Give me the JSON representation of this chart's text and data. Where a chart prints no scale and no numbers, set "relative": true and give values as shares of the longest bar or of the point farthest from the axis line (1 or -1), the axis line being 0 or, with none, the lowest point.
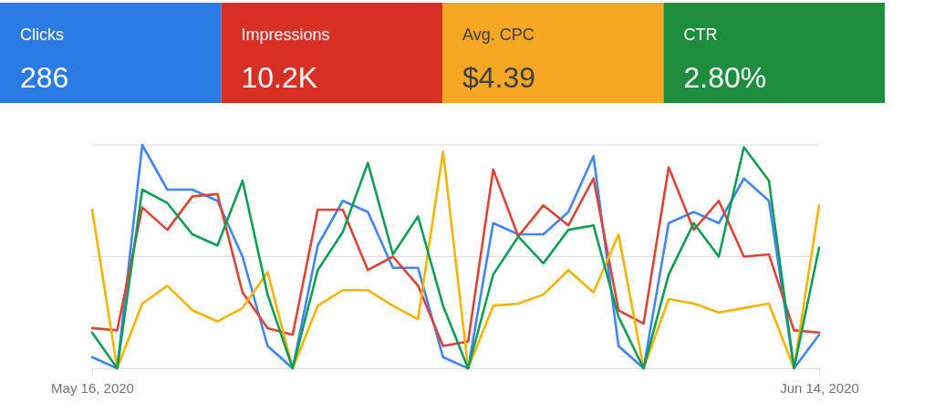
{
  "chart_data": [
    {
      "type": "other",
      "categories": [
        "Clicks",
        "Impressions",
        "Avg. CPC",
        "CTR"
      ],
      "annotations": [
        "286",
        "10.2K",
        "$4.39",
        "2.80%"
      ],
      "colors": [
        "#2a7be4",
        "#d93025",
        "#f5a623",
        "#1e8e3e"
      ]
    },
    {
      "type": "line",
      "relative": true,
      "x": [
        "2020-05-16",
        "2020-05-17",
        "2020-05-18",
        "2020-05-19",
        "2020-05-20",
        "2020-05-21",
        "2020-05-22",
        "2020-05-23",
        "2020-05-24",
        "2020-05-25",
        "2020-05-26",
        "2020-05-27",
        "2020-05-28",
        "2020-05-29",
        "2020-05-30",
        "2020-05-31",
        "2020-06-01",
        "2020-06-02",
        "2020-06-03",
        "2020-06-04",
        "2020-06-05",
        "2020-06-06",
        "2020-06-07",
        "2020-06-08",
        "2020-06-09",
        "2020-06-10",
        "2020-06-11",
        "2020-06-12",
        "2020-06-13",
        "2020-06-14"
      ],
      "xlim": [
        "2020-05-16",
        "2020-06-14"
      ],
      "xticks": [
        {
          "value": "2020-05-16",
          "label": "May 16, 2020"
        },
        {
          "value": "2020-06-14",
          "label": "Jun 14, 2020"
        }
      ],
      "series": [
        {
          "color": "#4285f4",
          "values": [
            0.05,
            0,
            1,
            0.8,
            0.8,
            0.75,
            0.5,
            0.1,
            0,
            0.55,
            0.75,
            0.7,
            0.45,
            0.45,
            0.05,
            0,
            0.65,
            0.6,
            0.6,
            0.7,
            0.95,
            0.1,
            0,
            0.65,
            0.7,
            0.65,
            0.85,
            0.75,
            0,
            0.15
          ]
        },
        {
          "color": "#db4437",
          "values": [
            0.18,
            0.17,
            0.72,
            0.62,
            0.77,
            0.78,
            0.34,
            0.18,
            0.15,
            0.71,
            0.71,
            0.44,
            0.5,
            0.37,
            0.1,
            0.12,
            0.89,
            0.59,
            0.73,
            0.64,
            0.85,
            0.26,
            0.2,
            0.9,
            0.62,
            0.75,
            0.5,
            0.51,
            0.17,
            0.16
          ]
        },
        {
          "color": "#f4b400",
          "values": [
            0.71,
            0,
            0.29,
            0.37,
            0.26,
            0.21,
            0.27,
            0.43,
            0,
            0.28,
            0.35,
            0.35,
            0.28,
            0.22,
            0.97,
            0,
            0.28,
            0.29,
            0.33,
            0.44,
            0.34,
            0.6,
            0,
            0.31,
            0.29,
            0.25,
            0.27,
            0.29,
            0,
            0.73
          ]
        },
        {
          "color": "#0f9d58",
          "values": [
            0.16,
            0,
            0.8,
            0.74,
            0.6,
            0.55,
            0.84,
            0.33,
            0,
            0.44,
            0.61,
            0.92,
            0.51,
            0.68,
            0.28,
            0,
            0.42,
            0.59,
            0.47,
            0.62,
            0.64,
            0.23,
            0,
            0.42,
            0.65,
            0.5,
            0.99,
            0.84,
            0,
            0.54
          ]
        }
      ],
      "ref_lines": [
        {
          "axis": "y",
          "value": 0.5,
          "color": "#dadce0"
        },
        {
          "axis": "y",
          "value": 1,
          "color": "#dadce0"
        }
      ],
      "tick_labels": "x",
      "line_style": "solid"
    }
  ]
}
